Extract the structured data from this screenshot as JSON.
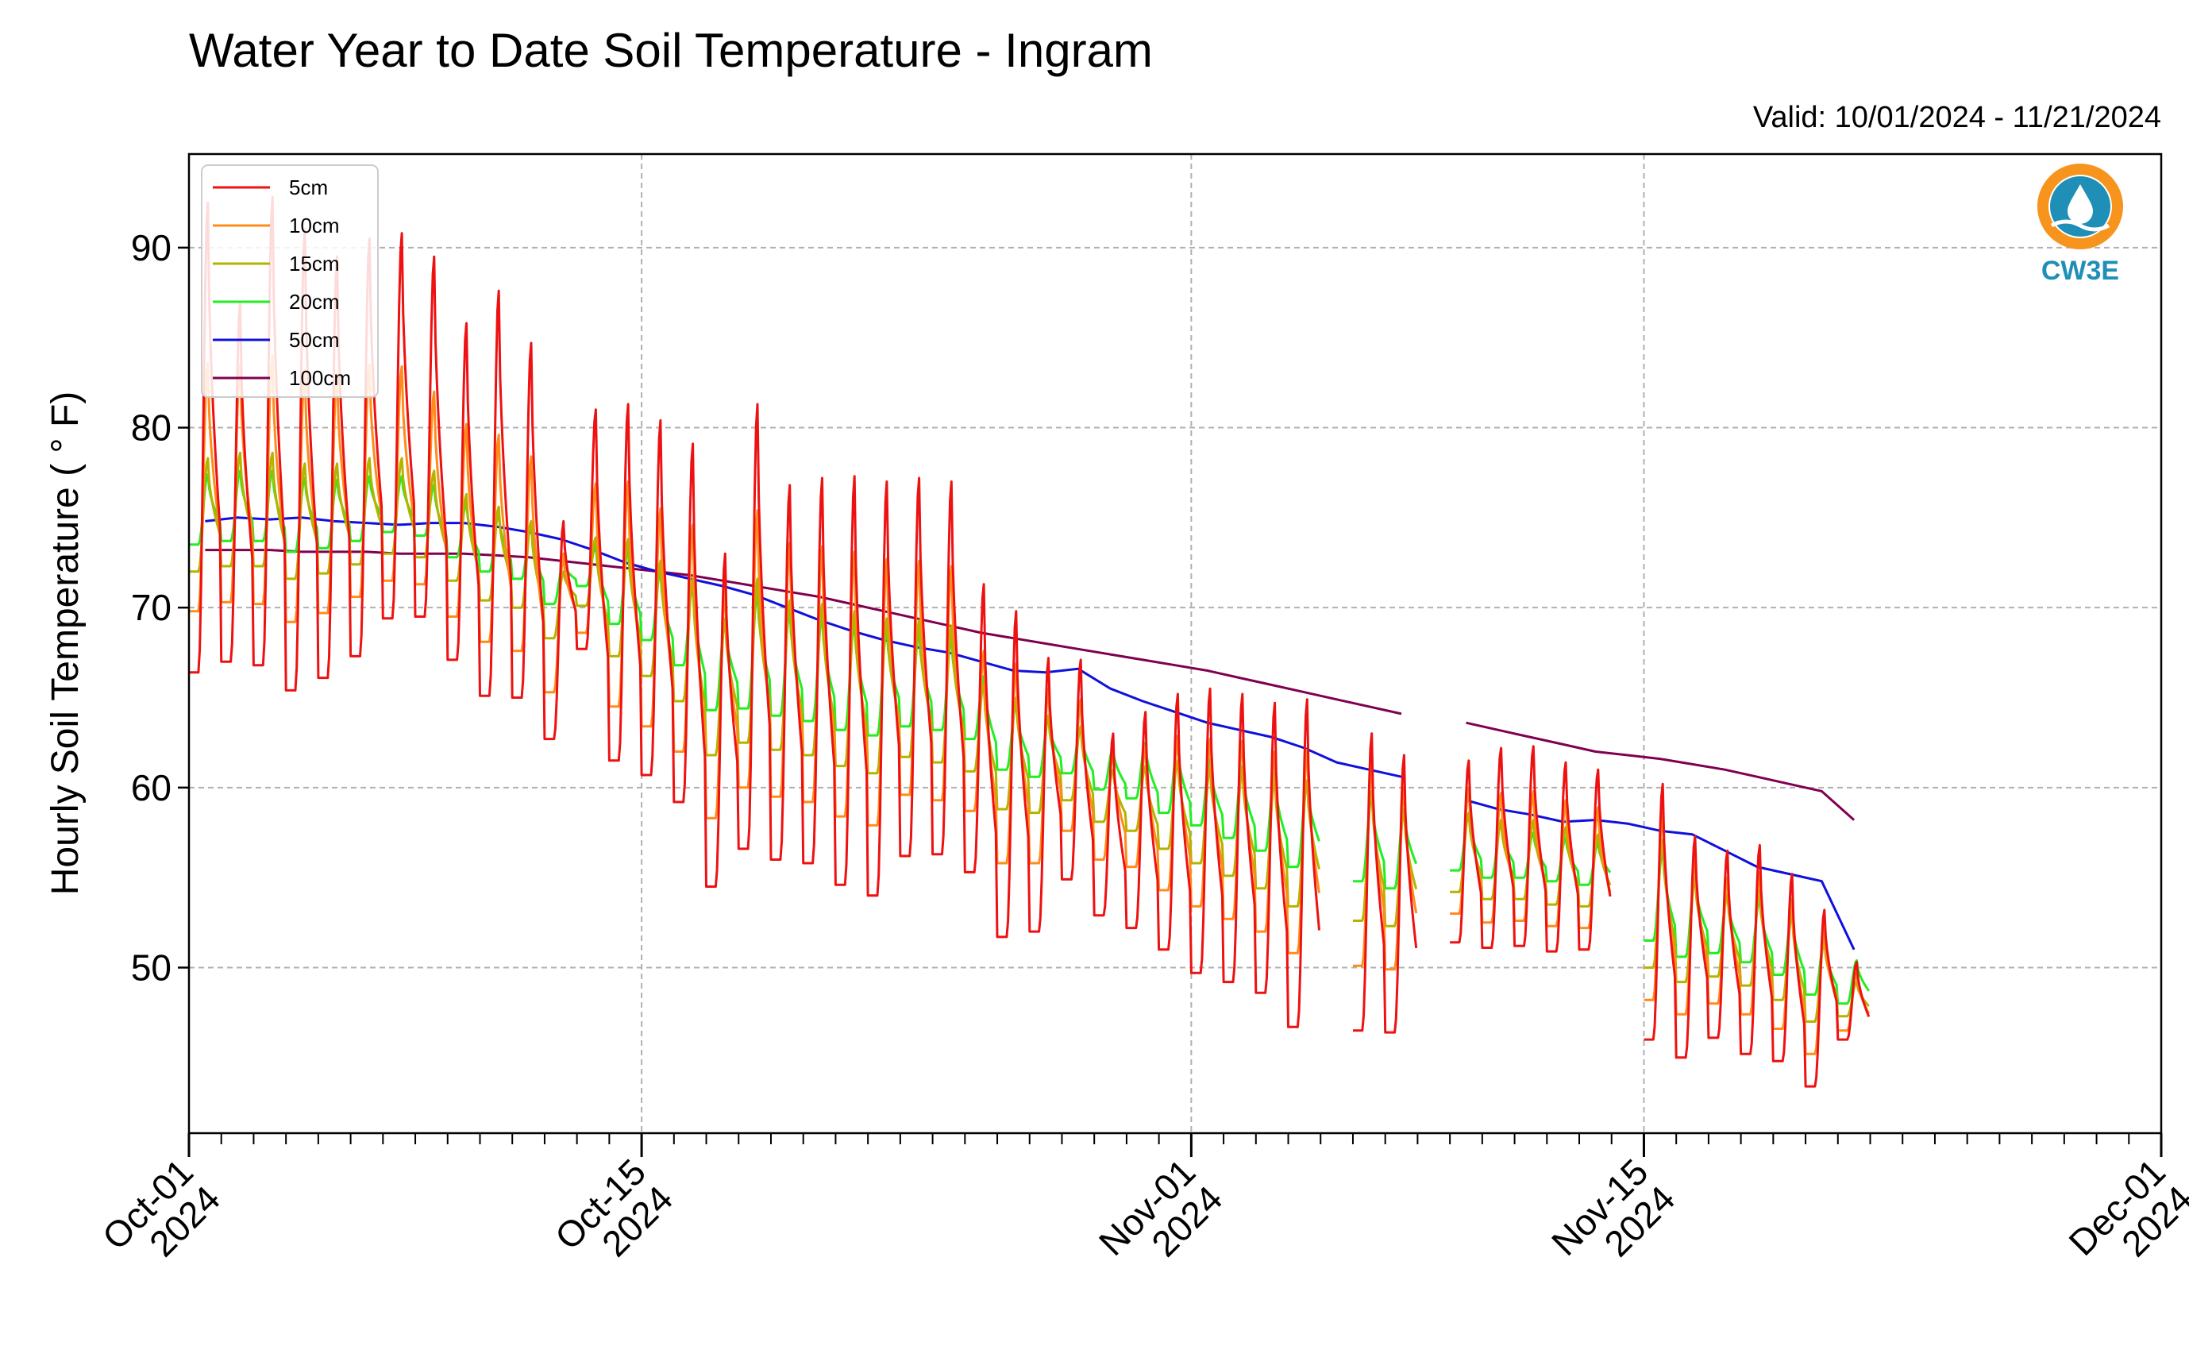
{
  "chart_data": {
    "type": "line",
    "title": "Water Year to Date Soil Temperature - Ingram",
    "subtitle": "Valid: 10/01/2024 - 11/21/2024",
    "ylabel": "Hourly Soil Temperature ( ° F)",
    "xlabel": "",
    "xlim": [
      "2024-10-01",
      "2024-12-01"
    ],
    "ylim": [
      40.8,
      95.2
    ],
    "grid": true,
    "legend_position": "top-left",
    "logo_text": "CW3E",
    "yticks": [
      {
        "value": 50,
        "label": "50"
      },
      {
        "value": 60,
        "label": "60"
      },
      {
        "value": 70,
        "label": "70"
      },
      {
        "value": 80,
        "label": "80"
      },
      {
        "value": 90,
        "label": "90"
      }
    ],
    "xticks": [
      {
        "date": "2024-10-01",
        "line1": "Oct-01",
        "line2": "2024"
      },
      {
        "date": "2024-10-15",
        "line1": "Oct-15",
        "line2": "2024"
      },
      {
        "date": "2024-11-01",
        "line1": "Nov-01",
        "line2": "2024"
      },
      {
        "date": "2024-11-15",
        "line1": "Nov-15",
        "line2": "2024"
      },
      {
        "date": "2024-12-01",
        "line1": "Dec-01",
        "line2": "2024"
      }
    ],
    "colors": {
      "5cm": "#ee1111",
      "10cm": "#ff8c1a",
      "15cm": "#b3b300",
      "20cm": "#22ee22",
      "50cm": "#1010dd",
      "100cm": "#800050",
      "grid": "#b0b0b0",
      "logo": "#1f8fb8",
      "logo_accent": "#f7941d"
    },
    "series": [
      {
        "name": "5cm",
        "color": "#ee1111",
        "x": [
          "2024-10-01",
          "2024-10-02",
          "2024-10-03",
          "2024-10-04",
          "2024-10-05",
          "2024-10-06",
          "2024-10-07",
          "2024-10-08",
          "2024-10-09",
          "2024-10-10",
          "2024-10-11",
          "2024-10-12",
          "2024-10-13",
          "2024-10-14",
          "2024-10-15",
          "2024-10-16",
          "2024-10-17",
          "2024-10-18",
          "2024-10-19",
          "2024-10-20",
          "2024-10-21",
          "2024-10-22",
          "2024-10-23",
          "2024-10-24",
          "2024-10-25",
          "2024-10-26",
          "2024-10-27",
          "2024-10-28",
          "2024-10-29",
          "2024-10-30",
          "2024-10-31",
          "2024-11-01",
          "2024-11-02",
          "2024-11-03",
          "2024-11-04",
          "2024-11-05",
          "2024-11-06",
          "2024-11-07",
          "2024-11-08",
          "2024-11-09",
          "2024-11-10",
          "2024-11-11",
          "2024-11-12",
          "2024-11-13",
          "2024-11-14",
          "2024-11-15",
          "2024-11-16",
          "2024-11-17",
          "2024-11-18",
          "2024-11-19",
          "2024-11-20",
          "2024-11-21"
        ],
        "max": [
          92.5,
          87.0,
          92.8,
          91.0,
          89.5,
          90.5,
          90.8,
          89.5,
          85.8,
          87.6,
          84.7,
          74.8,
          81.0,
          81.3,
          80.4,
          79.1,
          73.0,
          81.3,
          76.8,
          77.2,
          77.3,
          77.0,
          77.2,
          77.0,
          71.3,
          69.8,
          67.2,
          67.1,
          63.0,
          64.2,
          65.2,
          65.5,
          65.2,
          64.7,
          64.9,
          null,
          63.0,
          61.8,
          null,
          61.5,
          62.2,
          62.3,
          61.4,
          61.0,
          61.2,
          60.2,
          57.3,
          56.5,
          56.8,
          55.2,
          53.2,
          50.3
        ],
        "min": [
          66.4,
          67.0,
          66.8,
          65.4,
          66.1,
          67.3,
          69.4,
          69.5,
          67.1,
          65.1,
          65.0,
          62.7,
          67.7,
          61.5,
          60.7,
          59.2,
          54.5,
          56.6,
          56.0,
          55.8,
          54.6,
          54.0,
          56.2,
          56.3,
          55.3,
          51.7,
          52.0,
          54.9,
          52.9,
          52.2,
          51.0,
          49.7,
          49.2,
          48.6,
          46.7,
          null,
          46.5,
          46.4,
          46.6,
          51.4,
          51.1,
          51.2,
          50.9,
          51.0,
          null,
          46.0,
          45.0,
          46.1,
          45.2,
          44.8,
          43.4,
          46.0
        ]
      },
      {
        "name": "10cm",
        "color": "#ff8c1a",
        "x": [
          "2024-10-01",
          "2024-10-02",
          "2024-10-03",
          "2024-10-04",
          "2024-10-05",
          "2024-10-06",
          "2024-10-07",
          "2024-10-08",
          "2024-10-09",
          "2024-10-10",
          "2024-10-11",
          "2024-10-12",
          "2024-10-13",
          "2024-10-14",
          "2024-10-15",
          "2024-10-16",
          "2024-10-17",
          "2024-10-18",
          "2024-10-19",
          "2024-10-20",
          "2024-10-21",
          "2024-10-22",
          "2024-10-23",
          "2024-10-24",
          "2024-10-25",
          "2024-10-26",
          "2024-10-27",
          "2024-10-28",
          "2024-10-29",
          "2024-10-30",
          "2024-10-31",
          "2024-11-01",
          "2024-11-02",
          "2024-11-03",
          "2024-11-04",
          "2024-11-05",
          "2024-11-06",
          "2024-11-07",
          "2024-11-08",
          "2024-11-09",
          "2024-11-10",
          "2024-11-11",
          "2024-11-12",
          "2024-11-13",
          "2024-11-14",
          "2024-11-15",
          "2024-11-16",
          "2024-11-17",
          "2024-11-18",
          "2024-11-19",
          "2024-11-20",
          "2024-11-21"
        ],
        "max": [
          83.6,
          83.5,
          84.0,
          83.2,
          83.0,
          83.5,
          83.4,
          82.0,
          80.2,
          79.6,
          78.4,
          73.0,
          76.9,
          77.0,
          75.5,
          74.6,
          71.0,
          75.4,
          73.6,
          73.4,
          73.1,
          72.7,
          72.6,
          72.3,
          67.6,
          66.9,
          65.5,
          64.9,
          62.0,
          62.3,
          62.9,
          62.7,
          62.6,
          62.0,
          62.1,
          null,
          61.3,
          60.0,
          null,
          60.0,
          59.7,
          59.8,
          59.3,
          58.9,
          59.0,
          58.6,
          56.0,
          55.0,
          55.3,
          53.8,
          52.2,
          49.7
        ],
        "min": [
          69.8,
          70.3,
          70.2,
          69.2,
          69.7,
          70.6,
          71.5,
          71.3,
          69.5,
          68.1,
          67.6,
          65.3,
          68.6,
          64.5,
          63.4,
          62.0,
          58.3,
          60.0,
          59.5,
          59.2,
          58.4,
          57.9,
          59.6,
          59.3,
          58.7,
          55.8,
          55.8,
          57.6,
          56.0,
          55.6,
          54.3,
          53.4,
          52.7,
          52.0,
          50.8,
          null,
          50.1,
          49.9,
          50.1,
          53.0,
          52.5,
          52.6,
          52.3,
          52.2,
          null,
          48.2,
          47.4,
          48.0,
          47.4,
          46.6,
          45.2,
          46.5
        ]
      },
      {
        "name": "15cm",
        "color": "#b3b300",
        "x": [
          "2024-10-01",
          "2024-10-02",
          "2024-10-03",
          "2024-10-04",
          "2024-10-05",
          "2024-10-06",
          "2024-10-07",
          "2024-10-08",
          "2024-10-09",
          "2024-10-10",
          "2024-10-11",
          "2024-10-12",
          "2024-10-13",
          "2024-10-14",
          "2024-10-15",
          "2024-10-16",
          "2024-10-17",
          "2024-10-18",
          "2024-10-19",
          "2024-10-20",
          "2024-10-21",
          "2024-10-22",
          "2024-10-23",
          "2024-10-24",
          "2024-10-25",
          "2024-10-26",
          "2024-10-27",
          "2024-10-28",
          "2024-10-29",
          "2024-10-30",
          "2024-10-31",
          "2024-11-01",
          "2024-11-02",
          "2024-11-03",
          "2024-11-04",
          "2024-11-05",
          "2024-11-06",
          "2024-11-07",
          "2024-11-08",
          "2024-11-09",
          "2024-11-10",
          "2024-11-11",
          "2024-11-12",
          "2024-11-13",
          "2024-11-14",
          "2024-11-15",
          "2024-11-16",
          "2024-11-17",
          "2024-11-18",
          "2024-11-19",
          "2024-11-20",
          "2024-11-21"
        ],
        "max": [
          78.3,
          78.6,
          78.6,
          78.0,
          78.0,
          78.3,
          78.3,
          77.6,
          76.3,
          75.6,
          74.8,
          72.0,
          73.9,
          73.8,
          72.6,
          71.6,
          69.4,
          71.6,
          70.4,
          70.2,
          69.8,
          69.4,
          69.3,
          69.0,
          65.8,
          65.0,
          64.0,
          63.4,
          61.0,
          61.2,
          61.5,
          61.1,
          61.0,
          60.5,
          60.4,
          null,
          59.8,
          58.8,
          null,
          58.6,
          58.2,
          58.2,
          57.8,
          57.4,
          57.5,
          57.1,
          55.0,
          54.1,
          54.3,
          53.0,
          51.5,
          49.2
        ],
        "min": [
          72.0,
          72.3,
          72.3,
          71.6,
          71.9,
          72.4,
          73.0,
          72.8,
          71.5,
          70.4,
          70.0,
          68.3,
          70.1,
          67.3,
          66.2,
          64.8,
          61.8,
          62.5,
          62.1,
          61.8,
          61.2,
          60.8,
          61.7,
          61.4,
          60.9,
          58.8,
          58.6,
          59.3,
          58.1,
          57.6,
          56.6,
          55.8,
          55.1,
          54.4,
          53.4,
          null,
          52.6,
          52.3,
          52.5,
          54.2,
          53.8,
          53.8,
          53.5,
          53.4,
          null,
          50.0,
          49.2,
          49.5,
          49.0,
          48.2,
          47.0,
          47.3
        ]
      },
      {
        "name": "20cm",
        "color": "#22ee22",
        "x": [
          "2024-10-01",
          "2024-10-02",
          "2024-10-03",
          "2024-10-04",
          "2024-10-05",
          "2024-10-06",
          "2024-10-07",
          "2024-10-08",
          "2024-10-09",
          "2024-10-10",
          "2024-10-11",
          "2024-10-12",
          "2024-10-13",
          "2024-10-14",
          "2024-10-15",
          "2024-10-16",
          "2024-10-17",
          "2024-10-18",
          "2024-10-19",
          "2024-10-20",
          "2024-10-21",
          "2024-10-22",
          "2024-10-23",
          "2024-10-24",
          "2024-10-25",
          "2024-10-26",
          "2024-10-27",
          "2024-10-28",
          "2024-10-29",
          "2024-10-30",
          "2024-10-31",
          "2024-11-01",
          "2024-11-02",
          "2024-11-03",
          "2024-11-04",
          "2024-11-05",
          "2024-11-06",
          "2024-11-07",
          "2024-11-08",
          "2024-11-09",
          "2024-11-10",
          "2024-11-11",
          "2024-11-12",
          "2024-11-13",
          "2024-11-14",
          "2024-11-15",
          "2024-11-16",
          "2024-11-17",
          "2024-11-18",
          "2024-11-19",
          "2024-11-20",
          "2024-11-21"
        ],
        "max": [
          77.4,
          77.6,
          77.6,
          77.2,
          77.1,
          77.3,
          77.3,
          76.8,
          75.8,
          75.2,
          74.6,
          72.5,
          73.4,
          73.2,
          72.0,
          71.2,
          69.3,
          70.8,
          69.8,
          69.5,
          69.1,
          68.8,
          68.6,
          68.3,
          66.2,
          64.6,
          63.8,
          63.3,
          62.2,
          62.5,
          62.3,
          61.6,
          61.2,
          60.8,
          60.4,
          null,
          59.5,
          58.8,
          null,
          58.5,
          58.0,
          57.5,
          57.2,
          56.9,
          56.8,
          56.5,
          55.0,
          54.0,
          53.8,
          53.0,
          51.5,
          50.4
        ],
        "min": [
          73.5,
          73.7,
          73.7,
          73.1,
          73.3,
          73.7,
          74.2,
          74.0,
          72.8,
          72.0,
          71.6,
          70.2,
          71.2,
          69.1,
          68.2,
          66.8,
          64.3,
          64.4,
          64.0,
          63.7,
          63.2,
          62.9,
          63.4,
          63.2,
          62.7,
          61.0,
          60.6,
          60.8,
          59.9,
          59.4,
          58.6,
          57.9,
          57.2,
          56.5,
          55.6,
          null,
          54.8,
          54.4,
          54.5,
          55.4,
          55.0,
          55.0,
          54.8,
          54.6,
          null,
          51.5,
          50.6,
          50.8,
          50.3,
          49.6,
          48.5,
          48.0
        ]
      },
      {
        "name": "50cm",
        "color": "#1010dd",
        "x": [
          "2024-10-01",
          "2024-10-02",
          "2024-10-03",
          "2024-10-04",
          "2024-10-05",
          "2024-10-06",
          "2024-10-07",
          "2024-10-08",
          "2024-10-09",
          "2024-10-10",
          "2024-10-11",
          "2024-10-12",
          "2024-10-13",
          "2024-10-14",
          "2024-10-15",
          "2024-10-16",
          "2024-10-17",
          "2024-10-18",
          "2024-10-19",
          "2024-10-20",
          "2024-10-21",
          "2024-10-22",
          "2024-10-23",
          "2024-10-24",
          "2024-10-25",
          "2024-10-26",
          "2024-10-27",
          "2024-10-28",
          "2024-10-29",
          "2024-10-30",
          "2024-10-31",
          "2024-11-01",
          "2024-11-02",
          "2024-11-03",
          "2024-11-04",
          "2024-11-05",
          "2024-11-06",
          "2024-11-07",
          "2024-11-08",
          "2024-11-09",
          "2024-11-10",
          "2024-11-11",
          "2024-11-12",
          "2024-11-13",
          "2024-11-14",
          "2024-11-15",
          "2024-11-16",
          "2024-11-17",
          "2024-11-18",
          "2024-11-19",
          "2024-11-20",
          "2024-11-21"
        ],
        "values": [
          74.8,
          75.0,
          74.9,
          75.0,
          74.8,
          74.7,
          74.6,
          74.7,
          74.7,
          74.5,
          74.2,
          73.8,
          73.2,
          72.5,
          72.0,
          71.6,
          71.2,
          70.7,
          70.0,
          69.3,
          68.7,
          68.2,
          67.8,
          67.5,
          67.0,
          66.5,
          66.4,
          66.6,
          65.5,
          64.8,
          64.2,
          63.6,
          63.2,
          62.8,
          62.2,
          61.4,
          61.0,
          60.6,
          null,
          59.3,
          58.8,
          58.5,
          58.1,
          58.2,
          58.0,
          57.6,
          57.4,
          56.5,
          55.6,
          55.2,
          54.8,
          51.0
        ]
      },
      {
        "name": "100cm",
        "color": "#800050",
        "x": [
          "2024-10-01",
          "2024-10-02",
          "2024-10-03",
          "2024-10-04",
          "2024-10-05",
          "2024-10-06",
          "2024-10-07",
          "2024-10-08",
          "2024-10-09",
          "2024-10-10",
          "2024-10-11",
          "2024-10-12",
          "2024-10-13",
          "2024-10-14",
          "2024-10-15",
          "2024-10-16",
          "2024-10-17",
          "2024-10-18",
          "2024-10-19",
          "2024-10-20",
          "2024-10-21",
          "2024-10-22",
          "2024-10-23",
          "2024-10-24",
          "2024-10-25",
          "2024-10-26",
          "2024-10-27",
          "2024-10-28",
          "2024-10-29",
          "2024-10-30",
          "2024-10-31",
          "2024-11-01",
          "2024-11-02",
          "2024-11-03",
          "2024-11-04",
          "2024-11-05",
          "2024-11-06",
          "2024-11-07",
          "2024-11-08",
          "2024-11-09",
          "2024-11-10",
          "2024-11-11",
          "2024-11-12",
          "2024-11-13",
          "2024-11-14",
          "2024-11-15",
          "2024-11-16",
          "2024-11-17",
          "2024-11-18",
          "2024-11-19",
          "2024-11-20",
          "2024-11-21"
        ],
        "values": [
          73.2,
          73.2,
          73.2,
          73.1,
          73.1,
          73.1,
          73.0,
          73.0,
          73.0,
          72.9,
          72.8,
          72.6,
          72.4,
          72.2,
          72.0,
          71.8,
          71.5,
          71.2,
          70.9,
          70.6,
          70.2,
          69.8,
          69.4,
          69.0,
          68.6,
          68.3,
          68.0,
          67.7,
          67.4,
          67.1,
          66.8,
          66.5,
          66.1,
          65.7,
          65.3,
          64.9,
          64.5,
          64.1,
          null,
          63.6,
          63.2,
          62.8,
          62.4,
          62.0,
          61.8,
          61.6,
          61.3,
          61.0,
          60.6,
          60.2,
          59.8,
          58.2
        ]
      }
    ]
  }
}
